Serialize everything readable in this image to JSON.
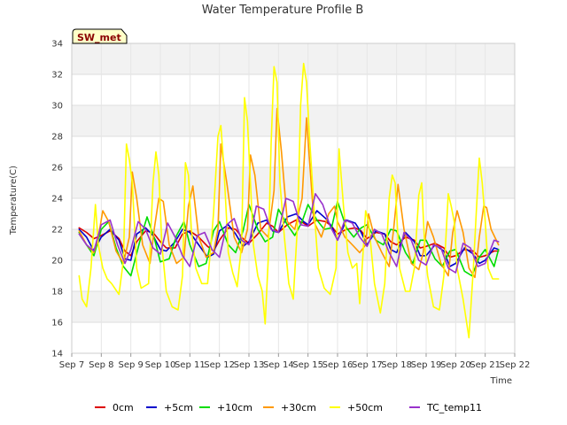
{
  "chart_data": {
    "type": "line",
    "title": "Water Temperature Profile B",
    "xlabel": "Time",
    "ylabel": "Temperature(C)",
    "station_badge": "SW_met",
    "xlim": [
      0,
      15
    ],
    "ylim": [
      14,
      34
    ],
    "xticks": [
      "Sep 7",
      "Sep 8",
      "Sep 9",
      "Sep 10",
      "Sep 11",
      "Sep 12",
      "Sep 13",
      "Sep 14",
      "Sep 15",
      "Sep 16",
      "Sep 17",
      "Sep 18",
      "Sep 19",
      "Sep 20",
      "Sep 21",
      "Sep 22"
    ],
    "yticks": [
      14,
      16,
      18,
      20,
      22,
      24,
      26,
      28,
      30,
      32,
      34
    ],
    "grid": true,
    "legend_position": "bottom",
    "series": [
      {
        "name": "0cm",
        "color": "#dd0000",
        "x": [
          0.25,
          0.5,
          0.75,
          1.0,
          1.3,
          1.6,
          1.8,
          2.0,
          2.2,
          2.5,
          2.75,
          3.0,
          3.2,
          3.5,
          3.75,
          4.0,
          4.3,
          4.6,
          4.8,
          5.0,
          5.3,
          5.55,
          5.8,
          6.0,
          6.3,
          6.6,
          6.8,
          7.0,
          7.3,
          7.6,
          7.85,
          8.0,
          8.3,
          8.6,
          8.8,
          9.0,
          9.3,
          9.6,
          9.8,
          10.0,
          10.3,
          10.6,
          10.8,
          11.0,
          11.3,
          11.6,
          11.8,
          12.0,
          12.3,
          12.6,
          12.8,
          13.0,
          13.3,
          13.6,
          13.8,
          14.0,
          14.3,
          14.45
        ],
        "y": [
          22.1,
          21.8,
          21.4,
          21.6,
          21.9,
          21.4,
          20.6,
          20.3,
          21.2,
          21.9,
          21.8,
          21.2,
          20.8,
          20.8,
          21.7,
          21.9,
          21.5,
          20.9,
          20.6,
          21.3,
          22.1,
          22.0,
          21.4,
          21.1,
          21.7,
          22.4,
          22.2,
          21.8,
          22.3,
          22.6,
          22.4,
          22.2,
          22.6,
          22.5,
          22.2,
          21.7,
          22.0,
          22.1,
          21.9,
          21.4,
          21.8,
          21.7,
          21.2,
          21.0,
          21.5,
          21.3,
          20.8,
          20.9,
          21.1,
          20.8,
          20.2,
          20.3,
          20.7,
          20.6,
          20.2,
          20.3,
          20.6,
          20.6
        ]
      },
      {
        "name": "+5cm",
        "color": "#0000cc",
        "x": [
          0.25,
          0.5,
          0.75,
          1.0,
          1.3,
          1.6,
          1.8,
          2.0,
          2.2,
          2.5,
          2.75,
          3.0,
          3.2,
          3.5,
          3.75,
          4.0,
          4.3,
          4.6,
          4.8,
          5.0,
          5.3,
          5.55,
          5.8,
          6.0,
          6.3,
          6.6,
          6.8,
          7.0,
          7.3,
          7.6,
          7.85,
          8.0,
          8.3,
          8.6,
          8.8,
          9.0,
          9.3,
          9.6,
          9.8,
          10.0,
          10.3,
          10.6,
          10.8,
          11.0,
          11.3,
          11.6,
          11.8,
          12.0,
          12.3,
          12.6,
          12.8,
          13.0,
          13.3,
          13.6,
          13.8,
          14.0,
          14.3,
          14.45
        ],
        "y": [
          22.0,
          21.5,
          20.6,
          21.5,
          22.0,
          21.3,
          20.1,
          20.0,
          21.7,
          22.1,
          21.6,
          20.7,
          20.6,
          21.2,
          22.0,
          21.8,
          21.0,
          20.2,
          20.4,
          21.9,
          22.3,
          21.7,
          20.9,
          21.2,
          22.4,
          22.6,
          21.9,
          21.8,
          22.8,
          23.0,
          22.5,
          22.3,
          23.2,
          22.7,
          22.2,
          21.3,
          22.6,
          22.4,
          21.8,
          21.0,
          21.9,
          21.7,
          20.7,
          20.5,
          21.8,
          21.2,
          20.3,
          20.3,
          21.0,
          20.6,
          19.6,
          19.8,
          20.8,
          20.4,
          19.8,
          20.0,
          20.8,
          20.7
        ]
      },
      {
        "name": "+10cm",
        "color": "#00dd00",
        "x": [
          0.25,
          0.5,
          0.75,
          1.0,
          1.25,
          1.5,
          1.75,
          2.0,
          2.3,
          2.55,
          2.8,
          3.0,
          3.3,
          3.55,
          3.8,
          4.0,
          4.3,
          4.55,
          4.8,
          5.0,
          5.3,
          5.55,
          5.8,
          6.0,
          6.3,
          6.55,
          6.8,
          7.0,
          7.3,
          7.55,
          7.8,
          8.0,
          8.3,
          8.55,
          8.8,
          9.0,
          9.3,
          9.55,
          9.8,
          10.0,
          10.3,
          10.55,
          10.8,
          11.0,
          11.3,
          11.55,
          11.8,
          12.0,
          12.3,
          12.55,
          12.8,
          13.0,
          13.3,
          13.55,
          13.8,
          14.0,
          14.3,
          14.45
        ],
        "y": [
          21.8,
          21.0,
          20.3,
          22.0,
          22.5,
          20.8,
          19.6,
          19.0,
          21.2,
          22.8,
          21.4,
          19.9,
          20.1,
          21.6,
          22.5,
          21.0,
          19.6,
          19.8,
          21.9,
          22.5,
          21.0,
          20.5,
          21.9,
          23.6,
          22.0,
          21.2,
          21.5,
          23.3,
          22.3,
          21.6,
          22.5,
          23.6,
          22.6,
          22.0,
          22.1,
          23.8,
          22.1,
          21.5,
          22.1,
          22.3,
          21.3,
          21.0,
          22.0,
          21.9,
          20.5,
          19.8,
          21.3,
          21.3,
          20.1,
          19.6,
          20.6,
          20.7,
          19.3,
          19.0,
          20.2,
          20.7,
          19.6,
          20.7
        ]
      },
      {
        "name": "+30cm",
        "color": "#ff9900",
        "x": [
          0.25,
          0.5,
          0.75,
          0.9,
          1.05,
          1.25,
          1.5,
          1.75,
          1.95,
          2.05,
          2.2,
          2.4,
          2.65,
          2.8,
          2.95,
          3.1,
          3.3,
          3.55,
          3.8,
          3.95,
          4.1,
          4.3,
          4.55,
          4.8,
          4.95,
          5.05,
          5.25,
          5.5,
          5.75,
          5.95,
          6.05,
          6.2,
          6.4,
          6.65,
          6.85,
          6.95,
          7.1,
          7.3,
          7.55,
          7.8,
          7.95,
          8.05,
          8.2,
          8.45,
          8.7,
          8.9,
          9.0,
          9.25,
          9.5,
          9.75,
          9.95,
          10.05,
          10.25,
          10.5,
          10.75,
          10.9,
          11.05,
          11.25,
          11.5,
          11.75,
          11.9,
          12.05,
          12.25,
          12.5,
          12.75,
          12.9,
          13.05,
          13.25,
          13.45,
          13.65,
          13.8,
          13.95,
          14.05,
          14.2,
          14.45
        ],
        "y": [
          21.9,
          21.0,
          20.5,
          21.5,
          23.2,
          22.5,
          20.6,
          19.8,
          21.5,
          25.7,
          24.0,
          21.0,
          19.8,
          22.1,
          24.0,
          23.8,
          21.0,
          19.8,
          20.2,
          23.5,
          24.8,
          21.5,
          20.2,
          20.5,
          22.0,
          27.5,
          25.0,
          21.5,
          20.5,
          22.0,
          26.8,
          25.5,
          22.0,
          21.5,
          24.5,
          29.8,
          27.0,
          22.5,
          22.0,
          24.0,
          29.2,
          26.5,
          22.5,
          21.5,
          23.0,
          23.5,
          22.5,
          21.5,
          21.0,
          20.5,
          21.0,
          23.0,
          21.5,
          20.5,
          19.6,
          22.0,
          24.9,
          22.0,
          19.8,
          19.4,
          20.5,
          22.5,
          21.5,
          19.8,
          19.0,
          21.8,
          23.2,
          21.8,
          19.5,
          18.9,
          21.5,
          23.5,
          23.4,
          22.0,
          21.0
        ]
      },
      {
        "name": "+50cm",
        "color": "#ffff00",
        "x": [
          0.25,
          0.35,
          0.5,
          0.65,
          0.8,
          0.9,
          1.05,
          1.2,
          1.35,
          1.6,
          1.75,
          1.85,
          1.95,
          2.05,
          2.2,
          2.35,
          2.6,
          2.75,
          2.85,
          2.95,
          3.05,
          3.2,
          3.4,
          3.6,
          3.75,
          3.85,
          3.95,
          4.05,
          4.2,
          4.4,
          4.6,
          4.8,
          4.95,
          5.05,
          5.15,
          5.3,
          5.45,
          5.6,
          5.75,
          5.85,
          5.95,
          6.05,
          6.15,
          6.3,
          6.45,
          6.55,
          6.65,
          6.75,
          6.85,
          6.95,
          7.05,
          7.2,
          7.35,
          7.5,
          7.65,
          7.75,
          7.85,
          7.95,
          8.05,
          8.2,
          8.35,
          8.55,
          8.75,
          8.95,
          9.05,
          9.2,
          9.35,
          9.5,
          9.65,
          9.75,
          9.85,
          9.95,
          10.05,
          10.25,
          10.45,
          10.6,
          10.75,
          10.85,
          10.95,
          11.1,
          11.3,
          11.45,
          11.6,
          11.75,
          11.85,
          11.95,
          12.05,
          12.25,
          12.45,
          12.6,
          12.75,
          12.85,
          12.95,
          13.05,
          13.25,
          13.45,
          13.6,
          13.7,
          13.8,
          13.9,
          14.0,
          14.1,
          14.25,
          14.45
        ],
        "y": [
          19.0,
          17.5,
          17.0,
          19.5,
          23.6,
          21.0,
          19.5,
          18.8,
          18.5,
          17.8,
          20.0,
          27.5,
          26.5,
          25.0,
          19.5,
          18.2,
          18.5,
          25.0,
          27.0,
          25.5,
          21.0,
          18.0,
          17.0,
          16.8,
          19.0,
          26.3,
          25.5,
          22.0,
          19.5,
          18.5,
          18.5,
          23.0,
          28.0,
          28.7,
          26.0,
          20.5,
          19.2,
          18.3,
          21.0,
          30.5,
          29.0,
          25.0,
          21.0,
          19.0,
          18.0,
          15.9,
          20.0,
          27.5,
          32.5,
          31.5,
          25.0,
          21.5,
          18.5,
          17.5,
          22.5,
          30.0,
          32.7,
          31.5,
          28.0,
          23.5,
          19.5,
          18.2,
          17.8,
          19.5,
          27.2,
          23.5,
          20.5,
          19.5,
          19.8,
          17.2,
          20.0,
          23.2,
          22.5,
          18.5,
          16.6,
          18.5,
          24.0,
          25.5,
          25.0,
          19.5,
          18.0,
          18.0,
          19.5,
          24.2,
          25.0,
          21.0,
          19.0,
          17.0,
          16.8,
          19.0,
          24.3,
          23.5,
          22.5,
          19.5,
          17.5,
          15.0,
          19.5,
          23.2,
          26.6,
          25.0,
          22.5,
          19.5,
          18.8,
          18.8
        ]
      },
      {
        "name": "TC_temp11",
        "color": "#9933cc",
        "x": [
          0.25,
          0.5,
          0.75,
          1.0,
          1.3,
          1.55,
          1.8,
          2.0,
          2.25,
          2.5,
          2.75,
          3.0,
          3.25,
          3.5,
          3.75,
          4.0,
          4.25,
          4.5,
          4.75,
          5.0,
          5.25,
          5.5,
          5.75,
          6.0,
          6.25,
          6.5,
          6.75,
          7.0,
          7.25,
          7.5,
          7.75,
          8.0,
          8.25,
          8.5,
          8.75,
          9.0,
          9.25,
          9.5,
          9.75,
          10.0,
          10.25,
          10.5,
          10.75,
          11.0,
          11.25,
          11.5,
          11.75,
          12.0,
          12.25,
          12.5,
          12.75,
          13.0,
          13.25,
          13.5,
          13.75,
          14.0,
          14.3,
          14.45
        ],
        "y": [
          21.7,
          21.0,
          20.6,
          22.3,
          22.6,
          21.0,
          19.8,
          20.7,
          22.5,
          22.0,
          20.8,
          20.4,
          22.4,
          21.5,
          20.3,
          19.6,
          21.6,
          21.8,
          20.7,
          20.2,
          22.3,
          22.7,
          21.3,
          21.0,
          23.5,
          23.3,
          22.0,
          21.8,
          24.0,
          23.8,
          22.3,
          22.2,
          24.3,
          23.6,
          22.2,
          21.3,
          22.6,
          22.4,
          21.5,
          20.9,
          22.0,
          21.7,
          20.5,
          19.6,
          21.8,
          21.3,
          20.0,
          19.7,
          21.0,
          20.8,
          19.5,
          19.2,
          21.1,
          20.8,
          19.6,
          19.8,
          21.3,
          21.2
        ]
      }
    ]
  }
}
